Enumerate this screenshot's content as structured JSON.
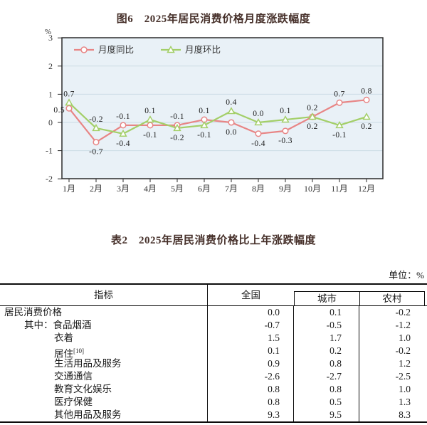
{
  "chart_data": {
    "type": "line",
    "title": "图6　2025年居民消费价格月度涨跌幅度",
    "ylabel": "%",
    "ylim": [
      -2,
      3
    ],
    "yticks": [
      3,
      2,
      1,
      0,
      -1,
      -2
    ],
    "grid": true,
    "legend_position": "top-left",
    "plot_bg": "#e9f1f7",
    "grid_color": "#ccdce6",
    "x": [
      "1月",
      "2月",
      "3月",
      "4月",
      "5月",
      "6月",
      "7月",
      "8月",
      "9月",
      "10月",
      "11月",
      "12月"
    ],
    "series": [
      {
        "name": "月度同比",
        "color": "#e88585",
        "marker": "circle",
        "values": [
          0.5,
          -0.7,
          -0.1,
          -0.1,
          -0.1,
          0.1,
          0.0,
          -0.4,
          -0.3,
          0.2,
          0.7,
          0.8
        ]
      },
      {
        "name": "月度环比",
        "color": "#a3cf68",
        "marker": "triangle",
        "values": [
          0.7,
          -0.2,
          -0.4,
          0.1,
          -0.2,
          -0.1,
          0.4,
          0.0,
          0.1,
          0.2,
          -0.1,
          0.2
        ]
      }
    ]
  },
  "table": {
    "title": "表2　2025年居民消费价格比上年涨跌幅度",
    "unit_note": "单位：%",
    "header": {
      "indicator": "指标",
      "national": "全国",
      "city": "城市",
      "rural": "农村"
    },
    "rows": [
      {
        "indicator": "居民消费价格",
        "indent": 0,
        "national": "0.0",
        "city": "0.1",
        "rural": "-0.2"
      },
      {
        "indicator": "其中：食品烟酒",
        "indent": 1,
        "national": "-0.7",
        "city": "-0.5",
        "rural": "-1.2"
      },
      {
        "indicator": "衣着",
        "indent": 2,
        "national": "1.5",
        "city": "1.7",
        "rural": "1.0"
      },
      {
        "indicator": "居住",
        "sup": "[10]",
        "indent": 2,
        "national": "0.1",
        "city": "0.2",
        "rural": "-0.2"
      },
      {
        "indicator": "生活用品及服务",
        "indent": 2,
        "national": "0.9",
        "city": "0.8",
        "rural": "1.2"
      },
      {
        "indicator": "交通通信",
        "indent": 2,
        "national": "-2.6",
        "city": "-2.7",
        "rural": "-2.5"
      },
      {
        "indicator": "教育文化娱乐",
        "indent": 2,
        "national": "0.8",
        "city": "0.8",
        "rural": "1.0"
      },
      {
        "indicator": "医疗保健",
        "indent": 2,
        "national": "0.8",
        "city": "0.5",
        "rural": "1.3"
      },
      {
        "indicator": "其他用品及服务",
        "indent": 2,
        "national": "9.3",
        "city": "9.5",
        "rural": "8.3"
      }
    ]
  }
}
